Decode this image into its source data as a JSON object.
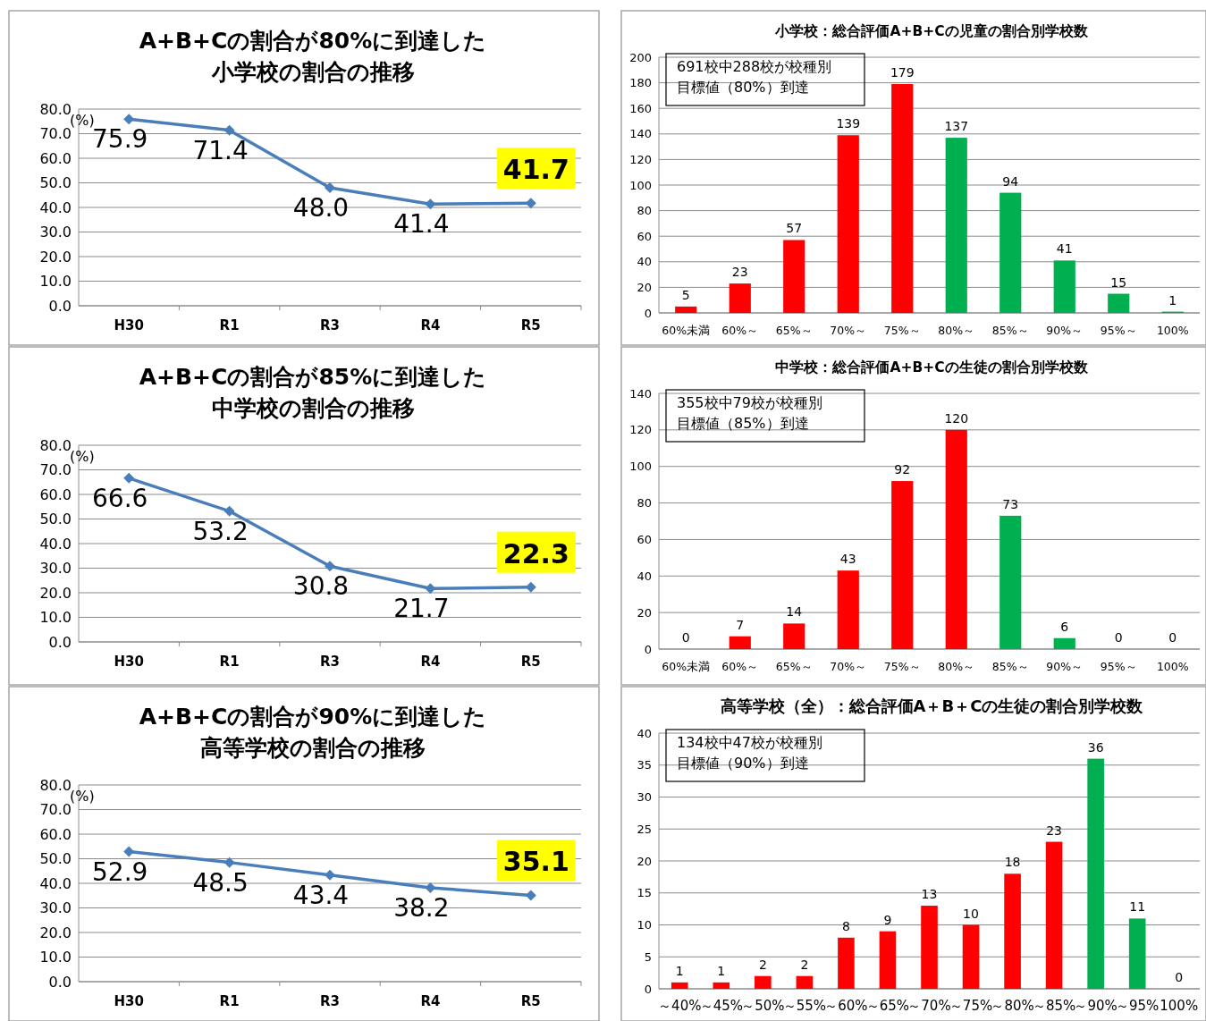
{
  "chart_data": [
    {
      "type": "line",
      "title": "A+B+Cの割合が80%に到達した",
      "subtitle": "小学校の割合の推移",
      "ylabel": "(%)",
      "categories": [
        "H30",
        "R1",
        "R3",
        "R4",
        "R5"
      ],
      "series": [
        {
          "color": "#4a7ebb",
          "values": [
            75.9,
            71.4,
            48.0,
            41.4,
            41.7
          ],
          "value_labels": [
            "75.9",
            "71.4",
            "48.0",
            "41.4",
            "41.7"
          ]
        }
      ],
      "ylim": [
        0,
        80
      ],
      "yticks": [
        {
          "value": 0,
          "label": "0.0"
        },
        {
          "value": 10,
          "label": "10.0"
        },
        {
          "value": 20,
          "label": "20.0"
        },
        {
          "value": 30,
          "label": "30.0"
        },
        {
          "value": 40,
          "label": "40.0"
        },
        {
          "value": 50,
          "label": "50.0"
        },
        {
          "value": 60,
          "label": "60.0"
        },
        {
          "value": 70,
          "label": "70.0"
        },
        {
          "value": 80,
          "label": "80.0"
        }
      ],
      "grid": "y",
      "marker": "diamond",
      "line_style": "solid"
    },
    {
      "type": "bar",
      "title": "小学校：総合評価A+B+Cの児童の割合別学校数",
      "categories": [
        "60%未満",
        "60%～",
        "65%～",
        "70%～",
        "75%～",
        "80%～",
        "85%～",
        "90%～",
        "95%～",
        "100%"
      ],
      "values": [
        5,
        23,
        57,
        139,
        179,
        137,
        94,
        41,
        15,
        1
      ],
      "colors": [
        "#ff0000",
        "#ff0000",
        "#ff0000",
        "#ff0000",
        "#ff0000",
        "#00b050",
        "#00b050",
        "#00b050",
        "#00b050",
        "#00b050"
      ],
      "ylim": [
        0,
        200
      ],
      "yticks": [
        0,
        20,
        40,
        60,
        80,
        100,
        120,
        140,
        160,
        180,
        200
      ],
      "grid": "y",
      "data_labels": true,
      "annotations": [
        "691校中288校が校種別",
        "目標値（80%）到達"
      ]
    },
    {
      "type": "line",
      "title": "A+B+Cの割合が85%に到達した",
      "subtitle": "中学校の割合の推移",
      "ylabel": "(%)",
      "categories": [
        "H30",
        "R1",
        "R3",
        "R4",
        "R5"
      ],
      "series": [
        {
          "color": "#4a7ebb",
          "values": [
            66.6,
            53.2,
            30.8,
            21.7,
            22.3
          ],
          "value_labels": [
            "66.6",
            "53.2",
            "30.8",
            "21.7",
            "22.3"
          ]
        }
      ],
      "ylim": [
        0,
        80
      ],
      "yticks": [
        {
          "value": 0,
          "label": "0.0"
        },
        {
          "value": 10,
          "label": "10.0"
        },
        {
          "value": 20,
          "label": "20.0"
        },
        {
          "value": 30,
          "label": "30.0"
        },
        {
          "value": 40,
          "label": "40.0"
        },
        {
          "value": 50,
          "label": "50.0"
        },
        {
          "value": 60,
          "label": "60.0"
        },
        {
          "value": 70,
          "label": "70.0"
        },
        {
          "value": 80,
          "label": "80.0"
        }
      ],
      "grid": "y",
      "marker": "diamond",
      "line_style": "solid"
    },
    {
      "type": "bar",
      "title": "中学校：総合評価A+B+Cの生徒の割合別学校数",
      "categories": [
        "60%未満",
        "60%～",
        "65%～",
        "70%～",
        "75%～",
        "80%～",
        "85%～",
        "90%～",
        "95%～",
        "100%"
      ],
      "values": [
        0,
        7,
        14,
        43,
        92,
        120,
        73,
        6,
        0,
        0
      ],
      "colors": [
        "#ff0000",
        "#ff0000",
        "#ff0000",
        "#ff0000",
        "#ff0000",
        "#ff0000",
        "#00b050",
        "#00b050",
        "#00b050",
        "#00b050"
      ],
      "ylim": [
        0,
        140
      ],
      "yticks": [
        0,
        20,
        40,
        60,
        80,
        100,
        120,
        140
      ],
      "grid": "y",
      "data_labels": true,
      "annotations": [
        "355校中79校が校種別",
        "目標値（85%）到達"
      ]
    },
    {
      "type": "line",
      "title": "A+B+Cの割合が90%に到達した",
      "subtitle": "高等学校の割合の推移",
      "ylabel": "(%)",
      "categories": [
        "H30",
        "R1",
        "R3",
        "R4",
        "R5"
      ],
      "series": [
        {
          "color": "#4a7ebb",
          "values": [
            52.9,
            48.5,
            43.4,
            38.2,
            35.1
          ],
          "value_labels": [
            "52.9",
            "48.5",
            "43.4",
            "38.2",
            "35.1"
          ]
        }
      ],
      "ylim": [
        0,
        80
      ],
      "yticks": [
        {
          "value": 0,
          "label": "0.0"
        },
        {
          "value": 10,
          "label": "10.0"
        },
        {
          "value": 20,
          "label": "20.0"
        },
        {
          "value": 30,
          "label": "30.0"
        },
        {
          "value": 40,
          "label": "40.0"
        },
        {
          "value": 50,
          "label": "50.0"
        },
        {
          "value": 60,
          "label": "60.0"
        },
        {
          "value": 70,
          "label": "70.0"
        },
        {
          "value": 80,
          "label": "80.0"
        }
      ],
      "grid": "y",
      "marker": "diamond",
      "line_style": "solid"
    },
    {
      "type": "bar",
      "title": "高等学校（全）：総合評価A＋B＋Cの生徒の割合別学校数",
      "categories": [
        "～40%",
        "～45%",
        "～50%",
        "～55%",
        "～60%",
        "～65%",
        "～70%",
        "～75%",
        "～80%",
        "～85%",
        "～90%",
        "～95%",
        "100%"
      ],
      "values": [
        1,
        1,
        2,
        2,
        8,
        9,
        13,
        10,
        18,
        23,
        36,
        11,
        0
      ],
      "colors": [
        "#ff0000",
        "#ff0000",
        "#ff0000",
        "#ff0000",
        "#ff0000",
        "#ff0000",
        "#ff0000",
        "#ff0000",
        "#ff0000",
        "#ff0000",
        "#00b050",
        "#00b050",
        "#00b050"
      ],
      "ylim": [
        0,
        40
      ],
      "yticks": [
        0,
        5,
        10,
        15,
        20,
        25,
        30,
        35,
        40
      ],
      "grid": "y",
      "data_labels": true,
      "annotations": [
        "134校中47校が校種別",
        "目標値（90%）到達"
      ]
    }
  ]
}
